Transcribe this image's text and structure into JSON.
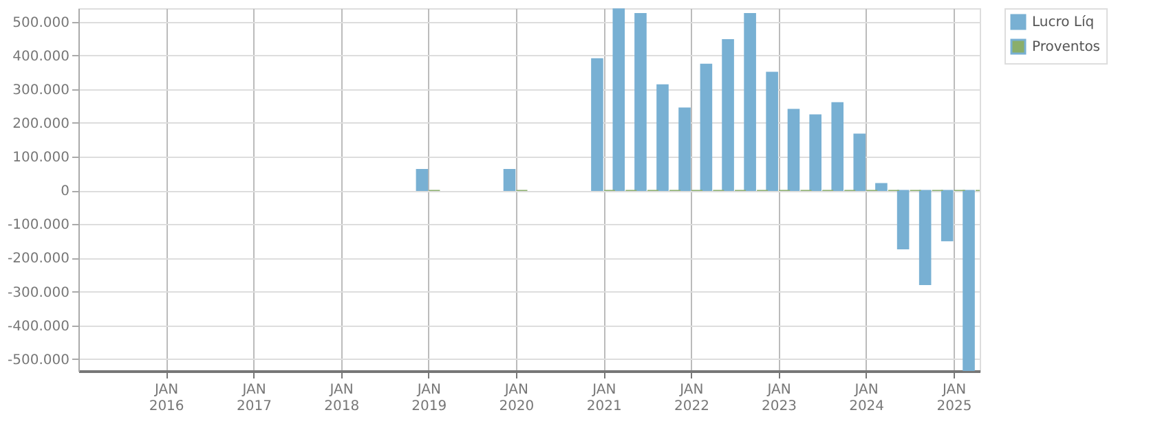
{
  "chart_data": {
    "type": "bar",
    "x": [
      "2018-12-31",
      "2019-12-31",
      "2020-12-31",
      "2021-03-31",
      "2021-06-30",
      "2021-09-30",
      "2021-12-31",
      "2022-03-31",
      "2022-06-30",
      "2022-09-30",
      "2022-12-31",
      "2023-03-31",
      "2023-06-30",
      "2023-09-30",
      "2023-12-31",
      "2024-03-31",
      "2024-06-30",
      "2024-09-30",
      "2024-12-31",
      "2025-03-31"
    ],
    "series": [
      {
        "name": "Lucro Líq",
        "color": "#78b0d3",
        "values": [
          62000,
          62000,
          390000,
          538000,
          524000,
          313000,
          244000,
          374000,
          447000,
          524000,
          350000,
          240000,
          224000,
          260000,
          167000,
          20000,
          -173000,
          -279000,
          -149000,
          -535000
        ]
      },
      {
        "name": "Proventos",
        "color": "#8aae6b",
        "values": [
          0,
          0,
          0,
          0,
          0,
          0,
          0,
          0,
          0,
          0,
          0,
          0,
          0,
          0,
          0,
          0,
          0,
          0,
          0,
          0
        ]
      }
    ],
    "xlim": [
      "2015-01-01",
      "2025-04-20"
    ],
    "xticks": [
      {
        "value": "2016-01-01",
        "label": "JAN\n2016"
      },
      {
        "value": "2017-01-01",
        "label": "JAN\n2017"
      },
      {
        "value": "2018-01-01",
        "label": "JAN\n2018"
      },
      {
        "value": "2019-01-01",
        "label": "JAN\n2019"
      },
      {
        "value": "2020-01-01",
        "label": "JAN\n2020"
      },
      {
        "value": "2021-01-01",
        "label": "JAN\n2021"
      },
      {
        "value": "2022-01-01",
        "label": "JAN\n2022"
      },
      {
        "value": "2023-01-01",
        "label": "JAN\n2023"
      },
      {
        "value": "2024-01-01",
        "label": "JAN\n2024"
      },
      {
        "value": "2025-01-01",
        "label": "JAN\n2025"
      }
    ],
    "ylim": [
      -535000,
      540000
    ],
    "yticks": [
      {
        "value": -500000,
        "label": "-500.000"
      },
      {
        "value": -400000,
        "label": "-400.000"
      },
      {
        "value": -300000,
        "label": "-300.000"
      },
      {
        "value": -200000,
        "label": "-200.000"
      },
      {
        "value": -100000,
        "label": "-100.000"
      },
      0,
      {
        "value": 100000,
        "label": "100.000"
      },
      {
        "value": 200000,
        "label": "200.000"
      },
      {
        "value": 300000,
        "label": "300.000"
      },
      {
        "value": 400000,
        "label": "400.000"
      },
      {
        "value": 500000,
        "label": "500.000"
      }
    ],
    "grid": true,
    "legend": "top right"
  }
}
